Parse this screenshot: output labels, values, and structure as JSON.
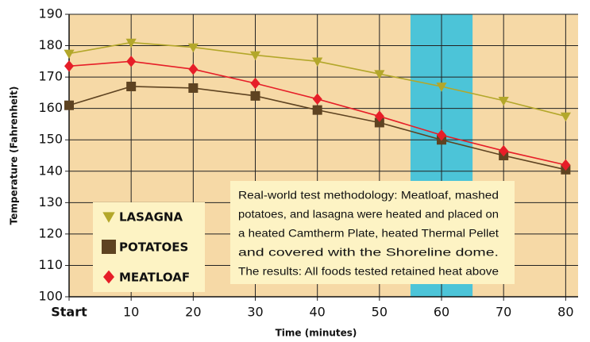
{
  "chart_data": {
    "type": "line",
    "x_label": "Time (minutes)",
    "y_label": "Temperature (Fahrenheit)",
    "x": [
      0,
      10,
      20,
      30,
      40,
      50,
      60,
      70,
      80
    ],
    "xlim": [
      0,
      82
    ],
    "xticks": [
      {
        "value": 0,
        "label": "Start"
      },
      10,
      20,
      30,
      40,
      50,
      60,
      70,
      80
    ],
    "ylim": [
      100,
      190
    ],
    "yticks": [
      100,
      110,
      120,
      130,
      140,
      150,
      160,
      170,
      180,
      190
    ],
    "grid": true,
    "highlight_band": {
      "x": [
        55,
        65
      ],
      "color": "#4cc4d8"
    },
    "series": [
      {
        "name": "LASAGNA",
        "color": "#b3a72a",
        "marker": "triangle-down",
        "values": [
          177.5,
          181,
          179.5,
          177,
          175,
          171,
          167,
          162.5,
          157.5
        ]
      },
      {
        "name": "POTATOES",
        "color": "#5e4321",
        "marker": "square",
        "values": [
          161,
          167,
          166.5,
          164,
          159.5,
          155.5,
          150,
          145,
          140.5
        ]
      },
      {
        "name": "MEATLOAF",
        "color": "#e61e28",
        "marker": "diamond",
        "values": [
          173.5,
          175,
          172.5,
          168,
          163,
          157.5,
          151.5,
          146.5,
          142
        ]
      }
    ],
    "annotation": [
      "Real-world test methodology: Meatloaf, mashed",
      "potatoes, and lasagna were heated and placed on",
      "a heated Camtherm Plate, heated Thermal Pellet",
      "and covered with the Shoreline dome.",
      "The results: All foods tested retained heat above"
    ]
  }
}
